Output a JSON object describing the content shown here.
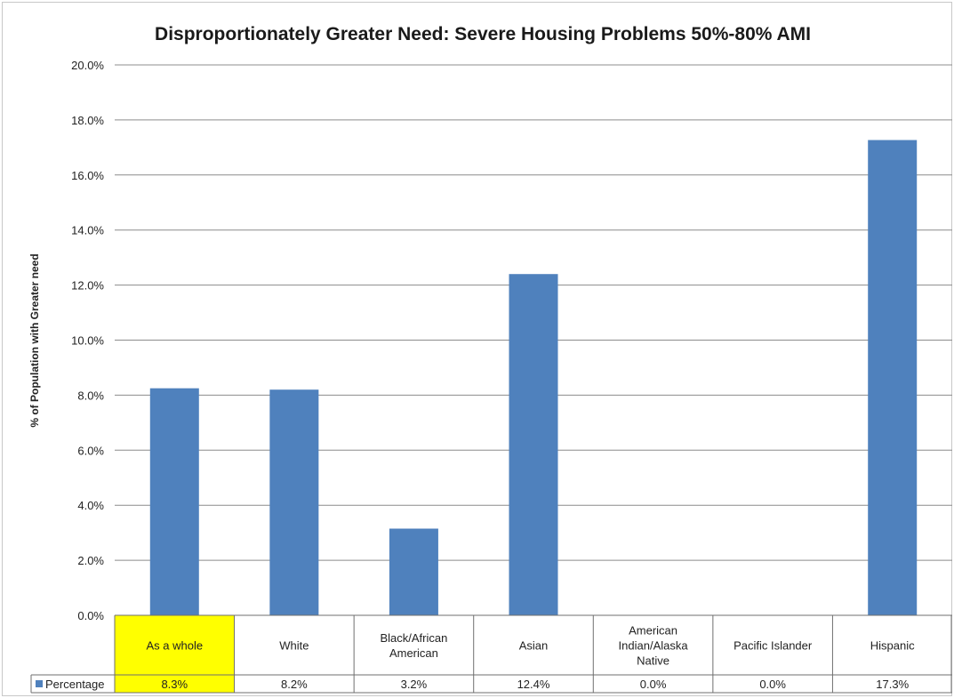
{
  "chart_data": {
    "type": "bar",
    "title": "Disproportionately Greater Need: Severe Housing Problems 50%-80%  AMI",
    "ylabel": "% of Population with Greater need",
    "xlabel": "",
    "ylim": [
      0,
      20
    ],
    "yticks": [
      "0.0%",
      "2.0%",
      "4.0%",
      "6.0%",
      "8.0%",
      "10.0%",
      "12.0%",
      "14.0%",
      "16.0%",
      "18.0%",
      "20.0%"
    ],
    "grid": true,
    "categories": [
      [
        "As a whole"
      ],
      [
        "White"
      ],
      [
        "Black/African",
        "American"
      ],
      [
        "Asian"
      ],
      [
        "American",
        "Indian/Alaska",
        "Native"
      ],
      [
        "Pacific Islander"
      ],
      [
        "Hispanic"
      ]
    ],
    "series": [
      {
        "name": "Percentage",
        "values": [
          8.25,
          8.2,
          3.15,
          12.4,
          0,
          0,
          17.27
        ],
        "labels": [
          "8.3%",
          "8.2%",
          "3.2%",
          "12.4%",
          "0.0%",
          "0.0%",
          "17.3%"
        ],
        "color": "#4f81bd"
      }
    ],
    "highlight_color": "#ffff00",
    "highlight_index": 0,
    "data_table": true,
    "legend": "data-table-left"
  }
}
